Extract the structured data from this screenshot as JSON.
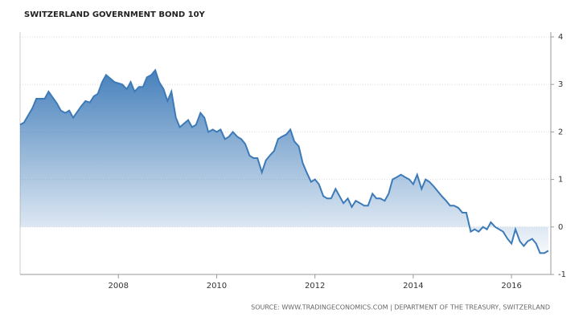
{
  "chart_data": {
    "type": "area",
    "title": "SWITZERLAND GOVERNMENT BOND 10Y",
    "source": "SOURCE: WWW.TRADINGECONOMICS.COM | DEPARTMENT OF THE TREASURY, SWITZERLAND",
    "color": "#3d7ab8",
    "x": [
      2006.0,
      2006.08,
      2006.25,
      2006.33,
      2006.5,
      2006.58,
      2006.75,
      2006.83,
      2006.92,
      2007.0,
      2007.08,
      2007.25,
      2007.33,
      2007.42,
      2007.5,
      2007.58,
      2007.67,
      2007.75,
      2007.92,
      2008.08,
      2008.17,
      2008.25,
      2008.33,
      2008.42,
      2008.5,
      2008.58,
      2008.67,
      2008.75,
      2008.83,
      2008.92,
      2009.0,
      2009.08,
      2009.17,
      2009.25,
      2009.42,
      2009.5,
      2009.58,
      2009.67,
      2009.75,
      2009.83,
      2009.92,
      2010.0,
      2010.08,
      2010.17,
      2010.25,
      2010.33,
      2010.42,
      2010.5,
      2010.58,
      2010.67,
      2010.75,
      2010.83,
      2010.92,
      2011.0,
      2011.08,
      2011.17,
      2011.25,
      2011.33,
      2011.42,
      2011.5,
      2011.58,
      2011.67,
      2011.75,
      2011.83,
      2011.92,
      2012.0,
      2012.08,
      2012.17,
      2012.25,
      2012.33,
      2012.42,
      2012.5,
      2012.58,
      2012.67,
      2012.75,
      2012.83,
      2012.92,
      2013.0,
      2013.08,
      2013.17,
      2013.25,
      2013.33,
      2013.42,
      2013.5,
      2013.58,
      2013.67,
      2013.75,
      2013.83,
      2013.92,
      2014.0,
      2014.08,
      2014.17,
      2014.25,
      2014.33,
      2014.42,
      2014.5,
      2014.58,
      2014.67,
      2014.75,
      2014.83,
      2014.92,
      2015.0,
      2015.08,
      2015.17,
      2015.25,
      2015.33,
      2015.42,
      2015.5,
      2015.58,
      2015.67,
      2015.75,
      2015.83,
      2015.92,
      2016.0,
      2016.08,
      2016.17,
      2016.25,
      2016.33,
      2016.42,
      2016.5,
      2016.58,
      2016.67,
      2016.75
    ],
    "values": [
      2.15,
      2.2,
      2.5,
      2.7,
      2.7,
      2.85,
      2.6,
      2.45,
      2.4,
      2.45,
      2.3,
      2.55,
      2.65,
      2.62,
      2.75,
      2.8,
      3.05,
      3.2,
      3.05,
      3.0,
      2.9,
      3.05,
      2.85,
      2.95,
      2.95,
      3.15,
      3.2,
      3.3,
      3.05,
      2.9,
      2.65,
      2.85,
      2.3,
      2.1,
      2.25,
      2.1,
      2.15,
      2.4,
      2.3,
      2.0,
      2.05,
      2.0,
      2.05,
      1.85,
      1.9,
      2.0,
      1.9,
      1.85,
      1.75,
      1.5,
      1.45,
      1.45,
      1.15,
      1.4,
      1.5,
      1.6,
      1.85,
      1.9,
      1.95,
      2.05,
      1.8,
      1.7,
      1.35,
      1.15,
      0.95,
      1.0,
      0.9,
      0.65,
      0.6,
      0.6,
      0.8,
      0.65,
      0.5,
      0.6,
      0.42,
      0.55,
      0.5,
      0.45,
      0.45,
      0.7,
      0.6,
      0.6,
      0.55,
      0.7,
      1.0,
      1.05,
      1.1,
      1.05,
      1.0,
      0.9,
      1.1,
      0.8,
      1.0,
      0.95,
      0.85,
      0.75,
      0.65,
      0.55,
      0.45,
      0.45,
      0.4,
      0.3,
      0.3,
      -0.1,
      -0.05,
      -0.1,
      0.0,
      -0.05,
      0.1,
      0.0,
      -0.05,
      -0.1,
      -0.25,
      -0.35,
      -0.05,
      -0.3,
      -0.4,
      -0.3,
      -0.25,
      -0.35,
      -0.55,
      -0.55,
      -0.5
    ],
    "xlim": [
      2006,
      2016.8
    ],
    "xticks": [
      2008,
      2010,
      2012,
      2014,
      2016
    ],
    "ylim": [
      -1,
      4
    ],
    "yticks": [
      -1,
      0,
      1,
      2,
      3,
      4
    ],
    "grid": true
  }
}
